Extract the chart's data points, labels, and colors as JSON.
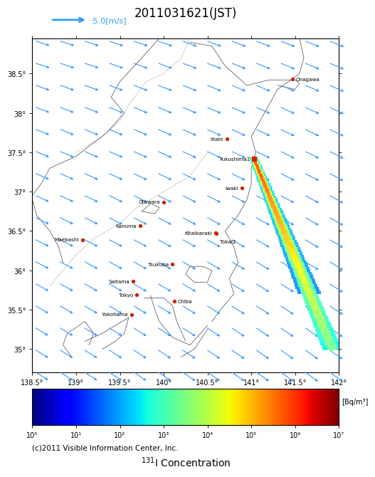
{
  "title": "2011031621(JST)",
  "wind_legend": ":5.0[m/s]",
  "colorbar_label": "[Bq/m³]",
  "copyright": "(c)2011 Visible Information Center, Inc.",
  "xlim": [
    138.5,
    142.0
  ],
  "ylim": [
    34.7,
    38.95
  ],
  "xticks": [
    138.5,
    139.0,
    139.5,
    140.0,
    140.5,
    141.0,
    141.5,
    142.0
  ],
  "yticks": [
    35.0,
    35.5,
    36.0,
    36.5,
    37.0,
    37.5,
    38.0,
    38.5
  ],
  "xtick_labels": [
    "138.5°",
    "139°",
    "139.5°",
    "140°",
    "140.5°",
    "141°",
    "141.5°",
    "142°"
  ],
  "ytick_labels": [
    "35°",
    "35.5°",
    "36°",
    "36.5°",
    "37°",
    "37.5°",
    "38°",
    "38.5°"
  ],
  "cities": [
    {
      "name": "Onagawa",
      "lon": 141.47,
      "lat": 38.43,
      "ha": "left",
      "xoff": 0.04,
      "yoff": 0.0
    },
    {
      "name": "Iitate",
      "lon": 140.72,
      "lat": 37.67,
      "ha": "right",
      "xoff": -0.04,
      "yoff": 0.0
    },
    {
      "name": "Fukushima1",
      "lon": 141.03,
      "lat": 37.42,
      "ha": "right",
      "xoff": -0.04,
      "yoff": 0.0
    },
    {
      "name": "Iwaki",
      "lon": 140.89,
      "lat": 37.05,
      "ha": "right",
      "xoff": -0.04,
      "yoff": 0.0
    },
    {
      "name": "Otawara",
      "lon": 140.0,
      "lat": 36.87,
      "ha": "right",
      "xoff": -0.04,
      "yoff": 0.0
    },
    {
      "name": "Kanuma",
      "lon": 139.73,
      "lat": 36.57,
      "ha": "right",
      "xoff": -0.04,
      "yoff": 0.0
    },
    {
      "name": "Kitaibaraki",
      "lon": 140.59,
      "lat": 36.48,
      "ha": "right",
      "xoff": -0.04,
      "yoff": 0.0
    },
    {
      "name": "Maebashi",
      "lon": 139.07,
      "lat": 36.39,
      "ha": "right",
      "xoff": -0.04,
      "yoff": 0.0
    },
    {
      "name": "Tokai2",
      "lon": 140.6,
      "lat": 36.47,
      "ha": "left",
      "xoff": 0.04,
      "yoff": -0.1
    },
    {
      "name": "Tsukuba",
      "lon": 140.1,
      "lat": 36.08,
      "ha": "right",
      "xoff": -0.04,
      "yoff": 0.0
    },
    {
      "name": "Saitama",
      "lon": 139.65,
      "lat": 35.86,
      "ha": "right",
      "xoff": -0.04,
      "yoff": 0.0
    },
    {
      "name": "Tokyo",
      "lon": 139.69,
      "lat": 35.69,
      "ha": "right",
      "xoff": -0.04,
      "yoff": 0.0
    },
    {
      "name": "Chiba",
      "lon": 140.12,
      "lat": 35.61,
      "ha": "left",
      "xoff": 0.04,
      "yoff": 0.0
    },
    {
      "name": "Yokohama",
      "lon": 139.63,
      "lat": 35.44,
      "ha": "right",
      "xoff": -0.04,
      "yoff": 0.0
    }
  ],
  "source_lon": 141.03,
  "source_lat": 37.42,
  "wind_color": "#3399ff",
  "colorbar_ticks": [
    0,
    1,
    2,
    3,
    4,
    5,
    6,
    7
  ],
  "colorbar_tick_labels": [
    "10⁰",
    "10¹",
    "10²",
    "10³",
    "10⁴",
    "10⁵",
    "10⁶",
    "10⁷"
  ]
}
